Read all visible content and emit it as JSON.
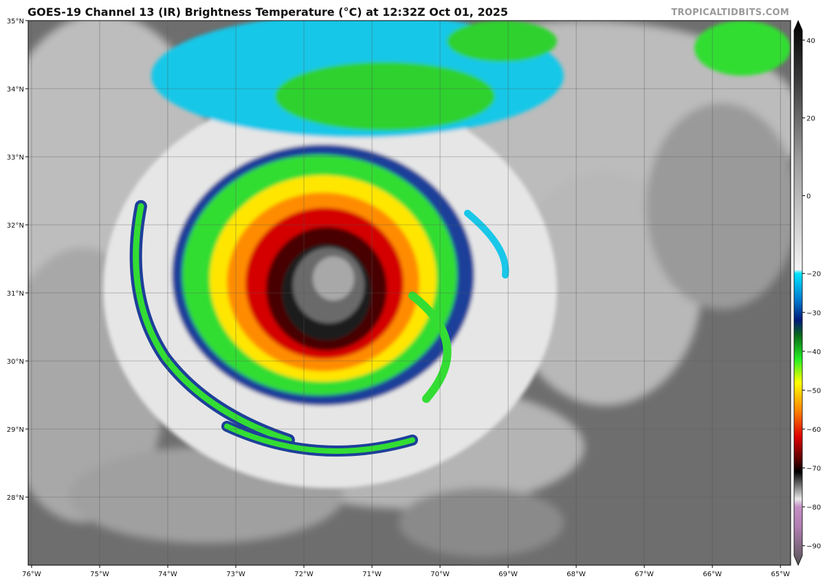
{
  "header": {
    "title": "GOES-19 Channel 13 (IR) Brightness Temperature (°C) at 12:32Z Oct 01, 2025",
    "credit": "TROPICALTIDBITS.COM"
  },
  "map": {
    "lon_range": [
      -76.05,
      -64.85
    ],
    "lat_range": [
      27.0,
      35.0
    ],
    "lon_ticks": [
      {
        "lon": -76,
        "label": "76°W"
      },
      {
        "lon": -75,
        "label": "75°W"
      },
      {
        "lon": -74,
        "label": "74°W"
      },
      {
        "lon": -73,
        "label": "73°W"
      },
      {
        "lon": -72,
        "label": "72°W"
      },
      {
        "lon": -71,
        "label": "71°W"
      },
      {
        "lon": -70,
        "label": "70°W"
      },
      {
        "lon": -69,
        "label": "69°W"
      },
      {
        "lon": -68,
        "label": "68°W"
      },
      {
        "lon": -67,
        "label": "67°W"
      },
      {
        "lon": -66,
        "label": "66°W"
      },
      {
        "lon": -65,
        "label": "65°W"
      }
    ],
    "lat_ticks": [
      {
        "lat": 35,
        "label": "35°N"
      },
      {
        "lat": 34,
        "label": "34°N"
      },
      {
        "lat": 33,
        "label": "33°N"
      },
      {
        "lat": 32,
        "label": "32°N"
      },
      {
        "lat": 31,
        "label": "31°N"
      },
      {
        "lat": 30,
        "label": "30°N"
      },
      {
        "lat": 29,
        "label": "29°N"
      },
      {
        "lat": 28,
        "label": "28°N"
      }
    ],
    "storm_center": {
      "lon": -71.75,
      "lat": 30.95
    },
    "background_color": "#6e6e6e"
  },
  "colorbar": {
    "ticks": [
      {
        "value": 40,
        "label": "40"
      },
      {
        "value": 20,
        "label": "20"
      },
      {
        "value": 0,
        "label": "0"
      },
      {
        "value": -20,
        "label": "−20"
      },
      {
        "value": -30,
        "label": "−30"
      },
      {
        "value": -40,
        "label": "−40"
      },
      {
        "value": -50,
        "label": "−50"
      },
      {
        "value": -60,
        "label": "−60"
      },
      {
        "value": -70,
        "label": "−70"
      },
      {
        "value": -80,
        "label": "−80"
      },
      {
        "value": -90,
        "label": "−90"
      }
    ],
    "range": [
      -95,
      45
    ],
    "stops": [
      {
        "value": 45,
        "color": "#000000"
      },
      {
        "value": 30,
        "color": "#3a3a3a"
      },
      {
        "value": 10,
        "color": "#9a9a9a"
      },
      {
        "value": -19,
        "color": "#f4f4f4"
      },
      {
        "value": -20,
        "color": "#00e5ff"
      },
      {
        "value": -27,
        "color": "#0077cc"
      },
      {
        "value": -32,
        "color": "#001a7a"
      },
      {
        "value": -36,
        "color": "#0a6b1a"
      },
      {
        "value": -42,
        "color": "#22ee22"
      },
      {
        "value": -48,
        "color": "#ffff00"
      },
      {
        "value": -55,
        "color": "#ff8800"
      },
      {
        "value": -62,
        "color": "#dd0000"
      },
      {
        "value": -68,
        "color": "#550000"
      },
      {
        "value": -71,
        "color": "#000000"
      },
      {
        "value": -78,
        "color": "#e8e8e8"
      },
      {
        "value": -80,
        "color": "#c48fc4"
      },
      {
        "value": -85,
        "color": "#b27fb2"
      },
      {
        "value": -95,
        "color": "#555555"
      }
    ]
  }
}
